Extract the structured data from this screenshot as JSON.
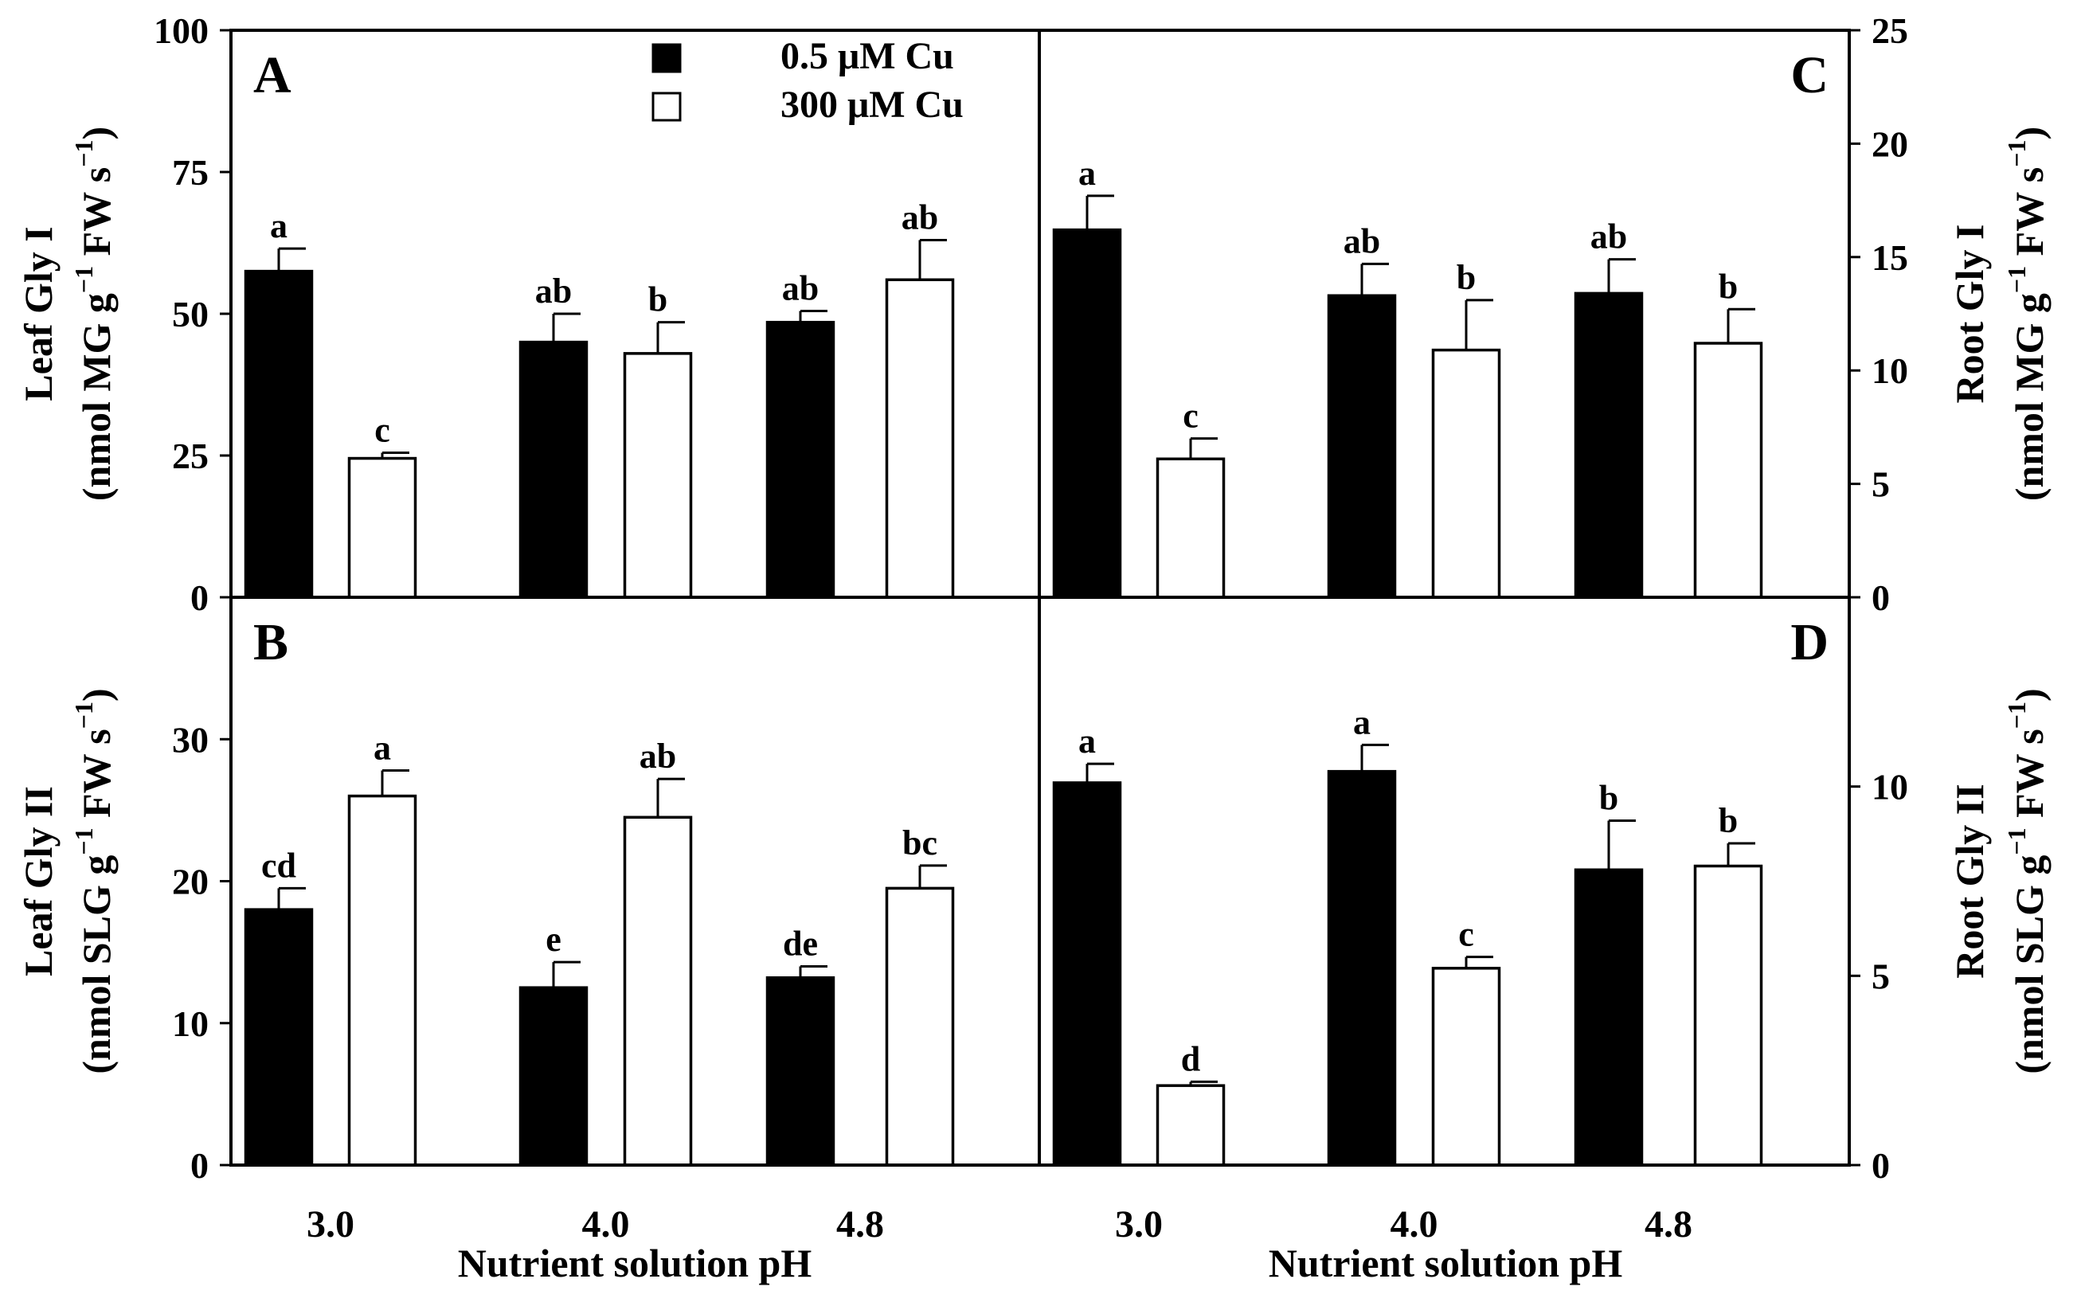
{
  "colors": {
    "bar_low_cu": "#000000",
    "bar_high_cu": "#ffffff",
    "axis": "#000000"
  },
  "legend": {
    "entries": [
      {
        "label": "0.5 μM Cu",
        "fill": "#000000"
      },
      {
        "label": "300 μM Cu",
        "fill": "#ffffff"
      }
    ]
  },
  "x_axis_label": "Nutrient solution pH",
  "chart_data": [
    {
      "panel": "A",
      "type": "bar",
      "ylabel_line1": "Leaf Gly I",
      "ylabel_line2": {
        "pre": "(nmol MG g",
        "sup1": "−1",
        "mid": " FW s",
        "sup2": "−1",
        "post": ")"
      },
      "categories": [
        "3.0",
        "4.0",
        "4.8"
      ],
      "ylim": [
        0,
        100
      ],
      "yticks": [
        0,
        25,
        50,
        75,
        100
      ],
      "series": [
        {
          "name": "0.5 μM Cu",
          "values": [
            57.5,
            45,
            48.5
          ],
          "errors": [
            4,
            5,
            2
          ],
          "letters": [
            "a",
            "ab",
            "ab"
          ]
        },
        {
          "name": "300 μM Cu",
          "values": [
            24.5,
            43,
            56
          ],
          "errors": [
            1,
            5.5,
            7
          ],
          "letters": [
            "c",
            "b",
            "ab"
          ]
        }
      ]
    },
    {
      "panel": "B",
      "type": "bar",
      "ylabel_line1": "Leaf Gly II",
      "ylabel_line2": {
        "pre": "(nmol SLG g",
        "sup1": "−1",
        "mid": " FW s",
        "sup2": "−1",
        "post": ")"
      },
      "categories": [
        "3.0",
        "4.0",
        "4.8"
      ],
      "ylim": [
        0,
        40
      ],
      "yticks": [
        0,
        10,
        20,
        30
      ],
      "series": [
        {
          "name": "0.5 μM Cu",
          "values": [
            18,
            12.5,
            13.2
          ],
          "errors": [
            1.5,
            1.8,
            0.8
          ],
          "letters": [
            "cd",
            "e",
            "de"
          ]
        },
        {
          "name": "300 μM Cu",
          "values": [
            26,
            24.5,
            19.5
          ],
          "errors": [
            1.8,
            2.7,
            1.6
          ],
          "letters": [
            "a",
            "ab",
            "bc"
          ]
        }
      ]
    },
    {
      "panel": "C",
      "type": "bar",
      "ylabel_line1": "Root Gly I",
      "ylabel_line2": {
        "pre": "(nmol MG g",
        "sup1": "−1",
        "mid": " FW s",
        "sup2": "−1",
        "post": ")"
      },
      "categories": [
        "3.0",
        "4.0",
        "4.8"
      ],
      "ylim": [
        0,
        25
      ],
      "yticks": [
        0,
        5,
        10,
        15,
        20,
        25
      ],
      "series": [
        {
          "name": "0.5 μM Cu",
          "values": [
            16.2,
            13.3,
            13.4
          ],
          "errors": [
            1.5,
            1.4,
            1.5
          ],
          "letters": [
            "a",
            "ab",
            "ab"
          ]
        },
        {
          "name": "300 μM Cu",
          "values": [
            6.1,
            10.9,
            11.2
          ],
          "errors": [
            0.9,
            2.2,
            1.5
          ],
          "letters": [
            "c",
            "b",
            "b"
          ]
        }
      ]
    },
    {
      "panel": "D",
      "type": "bar",
      "ylabel_line1": "Root Gly II",
      "ylabel_line2": {
        "pre": "(nmol SLG g",
        "sup1": "−1",
        "mid": " FW s",
        "sup2": "−1",
        "post": ")"
      },
      "categories": [
        "3.0",
        "4.0",
        "4.8"
      ],
      "ylim": [
        0,
        15
      ],
      "yticks": [
        0,
        5,
        10
      ],
      "series": [
        {
          "name": "0.5 μM Cu",
          "values": [
            10.1,
            10.4,
            7.8
          ],
          "errors": [
            0.5,
            0.7,
            1.3
          ],
          "letters": [
            "a",
            "a",
            "b"
          ]
        },
        {
          "name": "300 μM Cu",
          "values": [
            2.1,
            5.2,
            7.9
          ],
          "errors": [
            0.1,
            0.3,
            0.6
          ],
          "letters": [
            "d",
            "c",
            "b"
          ]
        }
      ]
    }
  ]
}
